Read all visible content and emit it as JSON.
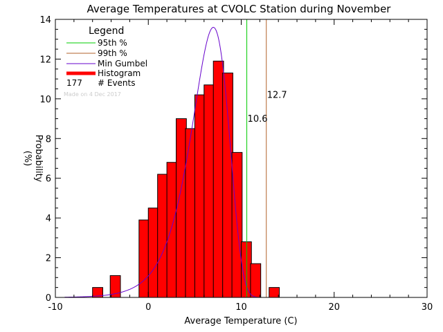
{
  "chart_data": {
    "type": "bar",
    "title": "Average Temperatures at CVOLC Station during November",
    "xlabel": "Average Temperature (C)",
    "ylabel_top": "Probability",
    "ylabel_bottom": "(%)",
    "xlim": [
      -10,
      30
    ],
    "ylim": [
      0,
      14
    ],
    "x_ticks": [
      -10,
      0,
      10,
      20,
      30
    ],
    "y_ticks": [
      0,
      2,
      4,
      6,
      8,
      10,
      12,
      14
    ],
    "histogram": {
      "bin_width": 1.1,
      "bins": [
        {
          "x0": -6.0,
          "value": 0.5
        },
        {
          "x0": -4.1,
          "value": 1.1
        },
        {
          "x0": -1.0,
          "value": 3.9
        },
        {
          "x0": 0.0,
          "value": 4.5
        },
        {
          "x0": 1.0,
          "value": 6.2
        },
        {
          "x0": 2.0,
          "value": 6.8
        },
        {
          "x0": 3.0,
          "value": 9.0
        },
        {
          "x0": 4.0,
          "value": 8.5
        },
        {
          "x0": 5.0,
          "value": 10.2
        },
        {
          "x0": 6.0,
          "value": 10.7
        },
        {
          "x0": 7.0,
          "value": 11.9
        },
        {
          "x0": 8.0,
          "value": 11.3
        },
        {
          "x0": 9.0,
          "value": 7.3
        },
        {
          "x0": 10.0,
          "value": 2.8
        },
        {
          "x0": 11.0,
          "value": 1.7
        },
        {
          "x0": 13.0,
          "value": 0.5
        }
      ]
    },
    "gumbel_curve": {
      "mode": 7.0,
      "peak": 13.6,
      "scale": 2.0
    },
    "percentile_95": {
      "value": 10.6,
      "label": "10.6",
      "color": "#00cc00"
    },
    "percentile_99": {
      "value": 12.7,
      "label": "12.7",
      "color": "#b0622a"
    },
    "colors": {
      "histogram": "#ff0000",
      "curve": "#6600cc",
      "axis": "#000000"
    },
    "legend": {
      "title": "Legend",
      "placement": "top-left",
      "entries": [
        {
          "label": "95th %",
          "color": "#00cc00"
        },
        {
          "label": "99th %",
          "color": "#b0622a"
        },
        {
          "label": "Min Gumbel",
          "color": "#6600cc"
        },
        {
          "label": "Histogram",
          "color": "#ff0000"
        }
      ],
      "events_count": "177",
      "events_label": "# Events"
    },
    "watermark": "Made on 4 Dec 2017"
  }
}
